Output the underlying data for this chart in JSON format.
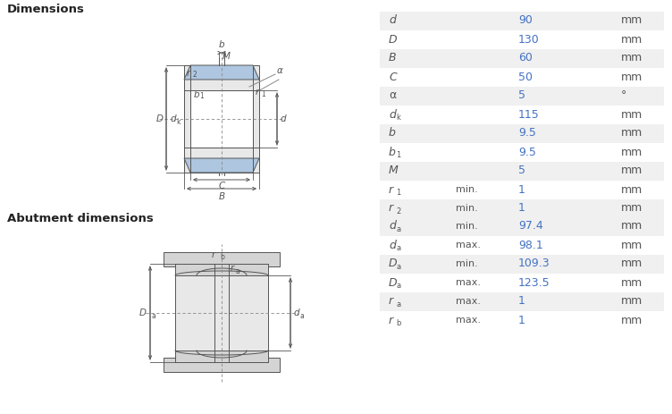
{
  "title1": "Dimensions",
  "title2": "Abutment dimensions",
  "dim_rows": [
    {
      "label": "d",
      "sub": "",
      "qualifier": "",
      "value": "90",
      "unit": "mm"
    },
    {
      "label": "D",
      "sub": "",
      "qualifier": "",
      "value": "130",
      "unit": "mm"
    },
    {
      "label": "B",
      "sub": "",
      "qualifier": "",
      "value": "60",
      "unit": "mm"
    },
    {
      "label": "C",
      "sub": "",
      "qualifier": "",
      "value": "50",
      "unit": "mm"
    },
    {
      "label": "α",
      "sub": "",
      "qualifier": "",
      "value": "5",
      "unit": "°"
    },
    {
      "label": "d",
      "sub": "k",
      "qualifier": "",
      "value": "115",
      "unit": "mm"
    },
    {
      "label": "b",
      "sub": "",
      "qualifier": "",
      "value": "9.5",
      "unit": "mm"
    },
    {
      "label": "b",
      "sub": "1",
      "qualifier": "",
      "value": "9.5",
      "unit": "mm"
    },
    {
      "label": "M",
      "sub": "",
      "qualifier": "",
      "value": "5",
      "unit": "mm"
    },
    {
      "label": "r",
      "sub": "1",
      "qualifier": "min.",
      "value": "1",
      "unit": "mm"
    },
    {
      "label": "r",
      "sub": "2",
      "qualifier": "min.",
      "value": "1",
      "unit": "mm"
    }
  ],
  "abut_rows": [
    {
      "label": "d",
      "sub": "a",
      "qualifier": "min.",
      "value": "97.4",
      "unit": "mm"
    },
    {
      "label": "d",
      "sub": "a",
      "qualifier": "max.",
      "value": "98.1",
      "unit": "mm"
    },
    {
      "label": "D",
      "sub": "a",
      "qualifier": "min.",
      "value": "109.3",
      "unit": "mm"
    },
    {
      "label": "D",
      "sub": "a",
      "qualifier": "max.",
      "value": "123.5",
      "unit": "mm"
    },
    {
      "label": "r",
      "sub": "a",
      "qualifier": "max.",
      "value": "1",
      "unit": "mm"
    },
    {
      "label": "r",
      "sub": "b",
      "qualifier": "max.",
      "value": "1",
      "unit": "mm"
    }
  ],
  "bg_color": "#ffffff",
  "table_bg1": "#f0f0f0",
  "table_bg2": "#ffffff",
  "label_color": "#555555",
  "value_color": "#4472c4",
  "unit_color": "#555555",
  "title_color": "#222222",
  "bearing_blue": "#aec6e0",
  "bearing_light": "#e8e8e8",
  "bearing_mid": "#c8c8c8",
  "bearing_dark": "#a0a0a0",
  "line_color": "#555555",
  "dim_line_color": "#888888",
  "abut_light": "#d4d4d4",
  "abut_lighter": "#e8e8e8"
}
